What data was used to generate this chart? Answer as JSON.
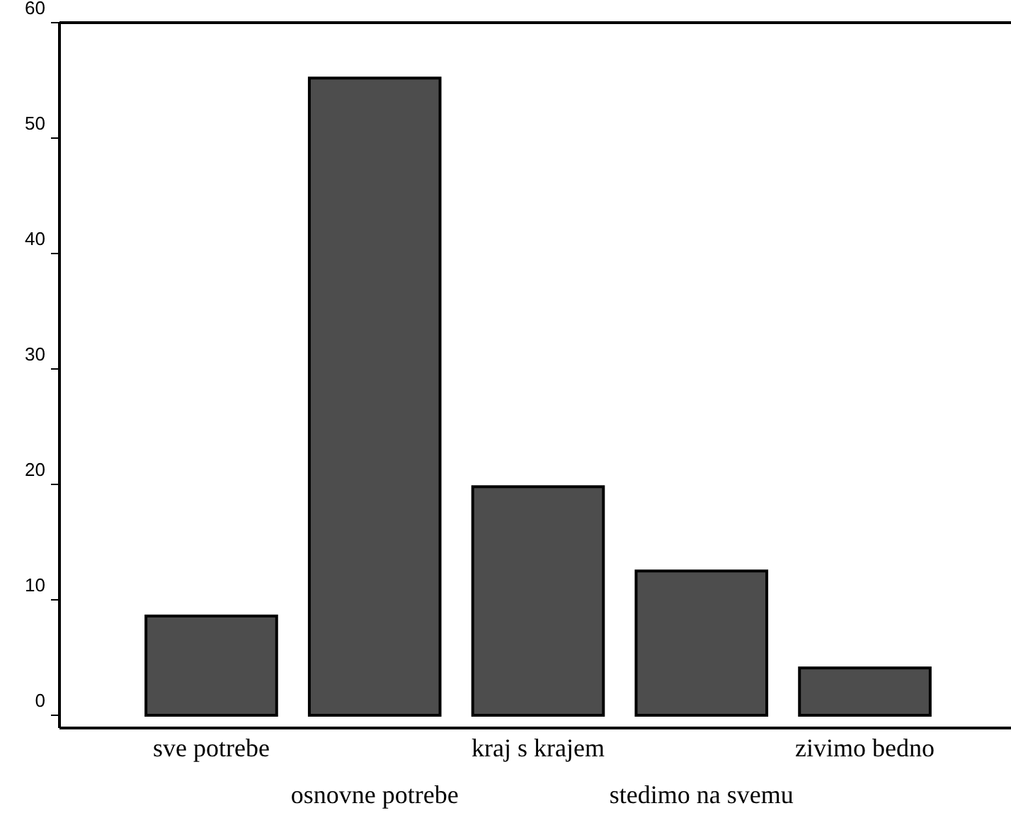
{
  "chart_data": {
    "type": "bar",
    "categories": [
      "sve potrebe",
      "osnovne potrebe",
      "kraj s krajem",
      "stedimo na svemu",
      "zivimo bedno"
    ],
    "values": [
      8.6,
      55.2,
      19.8,
      12.5,
      4.1
    ],
    "color": "#4d4d4d",
    "ylim": [
      0,
      60
    ],
    "yticks": [
      0,
      10,
      20,
      30,
      40,
      50,
      60
    ],
    "grid": false
  }
}
